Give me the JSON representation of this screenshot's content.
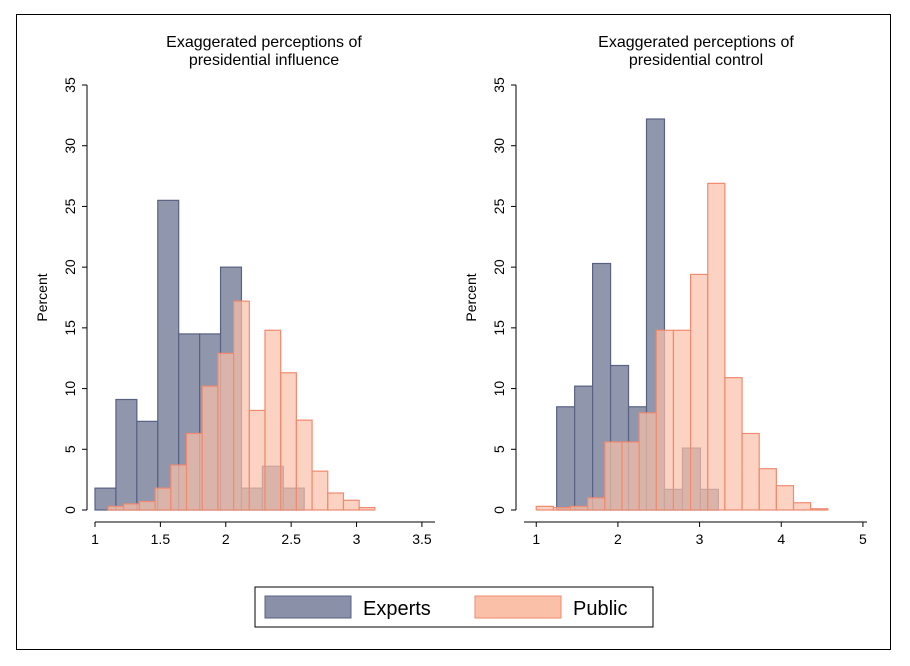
{
  "chart_data": [
    {
      "type": "bar",
      "title": [
        "Exaggerated perceptions of",
        "presidential influence"
      ],
      "xlabel": "",
      "ylabel": "Percent",
      "xlim": [
        1,
        3.5
      ],
      "ylim": [
        0,
        35
      ],
      "xticks": [
        "1",
        "1.5",
        "2",
        "2.5",
        "3",
        "3.5"
      ],
      "yticks": [
        "0",
        "5",
        "10",
        "15",
        "20",
        "25",
        "30",
        "35"
      ],
      "series": [
        {
          "name": "Experts",
          "bins": [
            {
              "x0": 1.0,
              "x1": 1.16,
              "value": 1.8
            },
            {
              "x0": 1.16,
              "x1": 1.32,
              "value": 9.1
            },
            {
              "x0": 1.32,
              "x1": 1.48,
              "value": 7.3
            },
            {
              "x0": 1.48,
              "x1": 1.64,
              "value": 25.5
            },
            {
              "x0": 1.64,
              "x1": 1.8,
              "value": 14.5
            },
            {
              "x0": 1.8,
              "x1": 1.96,
              "value": 14.5
            },
            {
              "x0": 1.96,
              "x1": 2.12,
              "value": 20.0
            },
            {
              "x0": 2.12,
              "x1": 2.28,
              "value": 1.8
            },
            {
              "x0": 2.28,
              "x1": 2.44,
              "value": 3.6
            },
            {
              "x0": 2.44,
              "x1": 2.6,
              "value": 1.8
            }
          ]
        },
        {
          "name": "Public",
          "bins": [
            {
              "x0": 1.1,
              "x1": 1.22,
              "value": 0.3
            },
            {
              "x0": 1.22,
              "x1": 1.34,
              "value": 0.5
            },
            {
              "x0": 1.34,
              "x1": 1.46,
              "value": 0.7
            },
            {
              "x0": 1.46,
              "x1": 1.58,
              "value": 1.8
            },
            {
              "x0": 1.58,
              "x1": 1.7,
              "value": 3.7
            },
            {
              "x0": 1.7,
              "x1": 1.82,
              "value": 6.3
            },
            {
              "x0": 1.82,
              "x1": 1.94,
              "value": 10.2
            },
            {
              "x0": 1.94,
              "x1": 2.06,
              "value": 12.9
            },
            {
              "x0": 2.06,
              "x1": 2.18,
              "value": 17.2
            },
            {
              "x0": 2.18,
              "x1": 2.3,
              "value": 8.2
            },
            {
              "x0": 2.3,
              "x1": 2.42,
              "value": 14.8
            },
            {
              "x0": 2.42,
              "x1": 2.54,
              "value": 11.3
            },
            {
              "x0": 2.54,
              "x1": 2.66,
              "value": 7.4
            },
            {
              "x0": 2.66,
              "x1": 2.78,
              "value": 3.2
            },
            {
              "x0": 2.78,
              "x1": 2.9,
              "value": 1.4
            },
            {
              "x0": 2.9,
              "x1": 3.02,
              "value": 0.8
            },
            {
              "x0": 3.02,
              "x1": 3.14,
              "value": 0.2
            }
          ]
        }
      ]
    },
    {
      "type": "bar",
      "title": [
        "Exaggerated perceptions of",
        "presidential control"
      ],
      "xlabel": "",
      "ylabel": "Percent",
      "xlim": [
        1,
        5
      ],
      "ylim": [
        0,
        35
      ],
      "xticks": [
        "1",
        "2",
        "3",
        "4",
        "5"
      ],
      "yticks": [
        "0",
        "5",
        "10",
        "15",
        "20",
        "25",
        "30",
        "35"
      ],
      "series": [
        {
          "name": "Experts",
          "bins": [
            {
              "x0": 1.25,
              "x1": 1.47,
              "value": 8.5
            },
            {
              "x0": 1.47,
              "x1": 1.69,
              "value": 10.2
            },
            {
              "x0": 1.69,
              "x1": 1.91,
              "value": 20.3
            },
            {
              "x0": 1.91,
              "x1": 2.13,
              "value": 11.9
            },
            {
              "x0": 2.13,
              "x1": 2.35,
              "value": 8.5
            },
            {
              "x0": 2.35,
              "x1": 2.57,
              "value": 32.2
            },
            {
              "x0": 2.57,
              "x1": 2.79,
              "value": 1.7
            },
            {
              "x0": 2.79,
              "x1": 3.01,
              "value": 5.1
            },
            {
              "x0": 3.01,
              "x1": 3.23,
              "value": 1.7
            }
          ]
        },
        {
          "name": "Public",
          "bins": [
            {
              "x0": 1.0,
              "x1": 1.21,
              "value": 0.3
            },
            {
              "x0": 1.21,
              "x1": 1.42,
              "value": 0.2
            },
            {
              "x0": 1.42,
              "x1": 1.63,
              "value": 0.3
            },
            {
              "x0": 1.63,
              "x1": 1.84,
              "value": 1.0
            },
            {
              "x0": 1.84,
              "x1": 2.05,
              "value": 5.6
            },
            {
              "x0": 2.05,
              "x1": 2.26,
              "value": 5.6
            },
            {
              "x0": 2.26,
              "x1": 2.47,
              "value": 8.0
            },
            {
              "x0": 2.47,
              "x1": 2.68,
              "value": 14.8
            },
            {
              "x0": 2.68,
              "x1": 2.89,
              "value": 14.8
            },
            {
              "x0": 2.89,
              "x1": 3.1,
              "value": 19.4
            },
            {
              "x0": 3.1,
              "x1": 3.31,
              "value": 26.9
            },
            {
              "x0": 3.31,
              "x1": 3.52,
              "value": 10.9
            },
            {
              "x0": 3.52,
              "x1": 3.73,
              "value": 6.3
            },
            {
              "x0": 3.73,
              "x1": 3.94,
              "value": 3.4
            },
            {
              "x0": 3.94,
              "x1": 4.15,
              "value": 2.0
            },
            {
              "x0": 4.15,
              "x1": 4.36,
              "value": 0.6
            },
            {
              "x0": 4.36,
              "x1": 4.57,
              "value": 0.1
            }
          ]
        }
      ]
    }
  ],
  "legend": {
    "items": [
      {
        "label": "Experts",
        "fill": "#8a90a8",
        "stroke": "#5a6282"
      },
      {
        "label": "Public",
        "fill": "#fbc0a8",
        "stroke": "#f08a70"
      }
    ]
  },
  "colors": {
    "experts_fill": "#8a90a8",
    "experts_stroke": "#5a6282",
    "public_fill": "#fbc0a8",
    "public_stroke": "#f08a70"
  }
}
